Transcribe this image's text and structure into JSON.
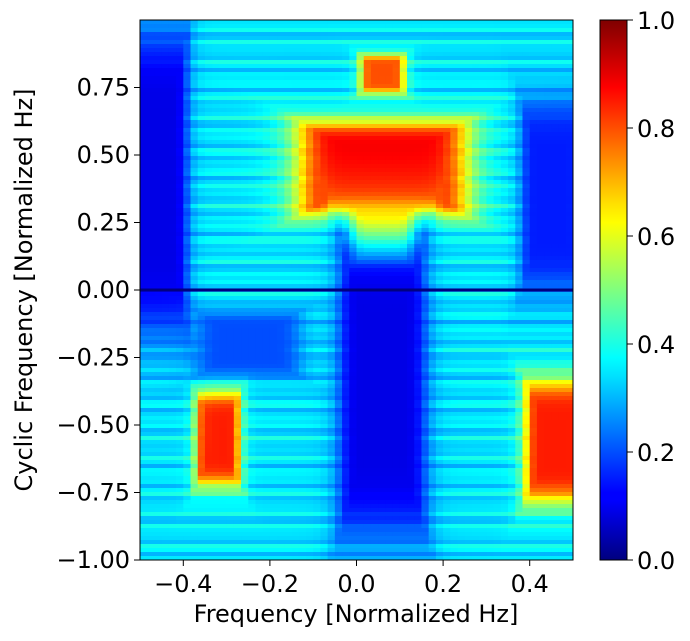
{
  "chart_data": {
    "type": "heatmap",
    "title": "",
    "xlabel": "Frequency [Normalized Hz]",
    "ylabel": "Cyclic Frequency [Normalized Hz]",
    "xlim": [
      -0.5,
      0.5
    ],
    "ylim": [
      -1.0,
      1.0
    ],
    "x_ticks": [
      -0.4,
      -0.2,
      0.0,
      0.2,
      0.4
    ],
    "x_tick_labels": [
      "−0.4",
      "−0.2",
      "0.0",
      "0.2",
      "0.4"
    ],
    "y_ticks": [
      0.75,
      0.5,
      0.25,
      0.0,
      -0.25,
      -0.5,
      -0.75,
      -1.0
    ],
    "y_tick_labels": [
      "0.75",
      "0.50",
      "0.25",
      "0.00",
      "−0.25",
      "−0.50",
      "−0.75",
      "−1.00"
    ],
    "colormap": "jet",
    "colorbar": {
      "range": [
        0.0,
        1.0
      ],
      "ticks": [
        0.0,
        0.2,
        0.4,
        0.6,
        0.8,
        1.0
      ],
      "tick_labels": [
        "0.0",
        "0.2",
        "0.4",
        "0.6",
        "0.8",
        "1.0"
      ]
    },
    "background_level": 0.35,
    "regions": [
      {
        "x_center": 0.06,
        "y_center": 0.45,
        "x_halfwidth": 0.19,
        "y_halfwidth": 0.17,
        "value": 0.9
      },
      {
        "x_center": 0.06,
        "y_center": 0.2,
        "x_halfwidth": 0.07,
        "y_halfwidth": 0.11,
        "value": 0.85
      },
      {
        "x_center": 0.06,
        "y_center": 0.8,
        "x_halfwidth": 0.05,
        "y_halfwidth": 0.07,
        "value": 0.8
      },
      {
        "x_center": -0.32,
        "y_center": -0.55,
        "x_halfwidth": 0.05,
        "y_halfwidth": 0.17,
        "value": 0.85
      },
      {
        "x_center": 0.46,
        "y_center": -0.56,
        "x_halfwidth": 0.07,
        "y_halfwidth": 0.22,
        "value": 0.85
      },
      {
        "x_center": 0.06,
        "y_center": -0.35,
        "x_halfwidth": 0.1,
        "y_halfwidth": 0.55,
        "value": 0.1
      },
      {
        "x_center": -0.46,
        "y_center": 0.4,
        "x_halfwidth": 0.07,
        "y_halfwidth": 0.55,
        "value": 0.1
      },
      {
        "x_center": 0.45,
        "y_center": 0.35,
        "x_halfwidth": 0.07,
        "y_halfwidth": 0.35,
        "value": 0.15
      },
      {
        "x_center": -0.25,
        "y_center": -0.2,
        "x_halfwidth": 0.12,
        "y_halfwidth": 0.12,
        "value": 0.2
      }
    ],
    "zero_line": {
      "y": 0.0,
      "value": 0.0
    }
  }
}
